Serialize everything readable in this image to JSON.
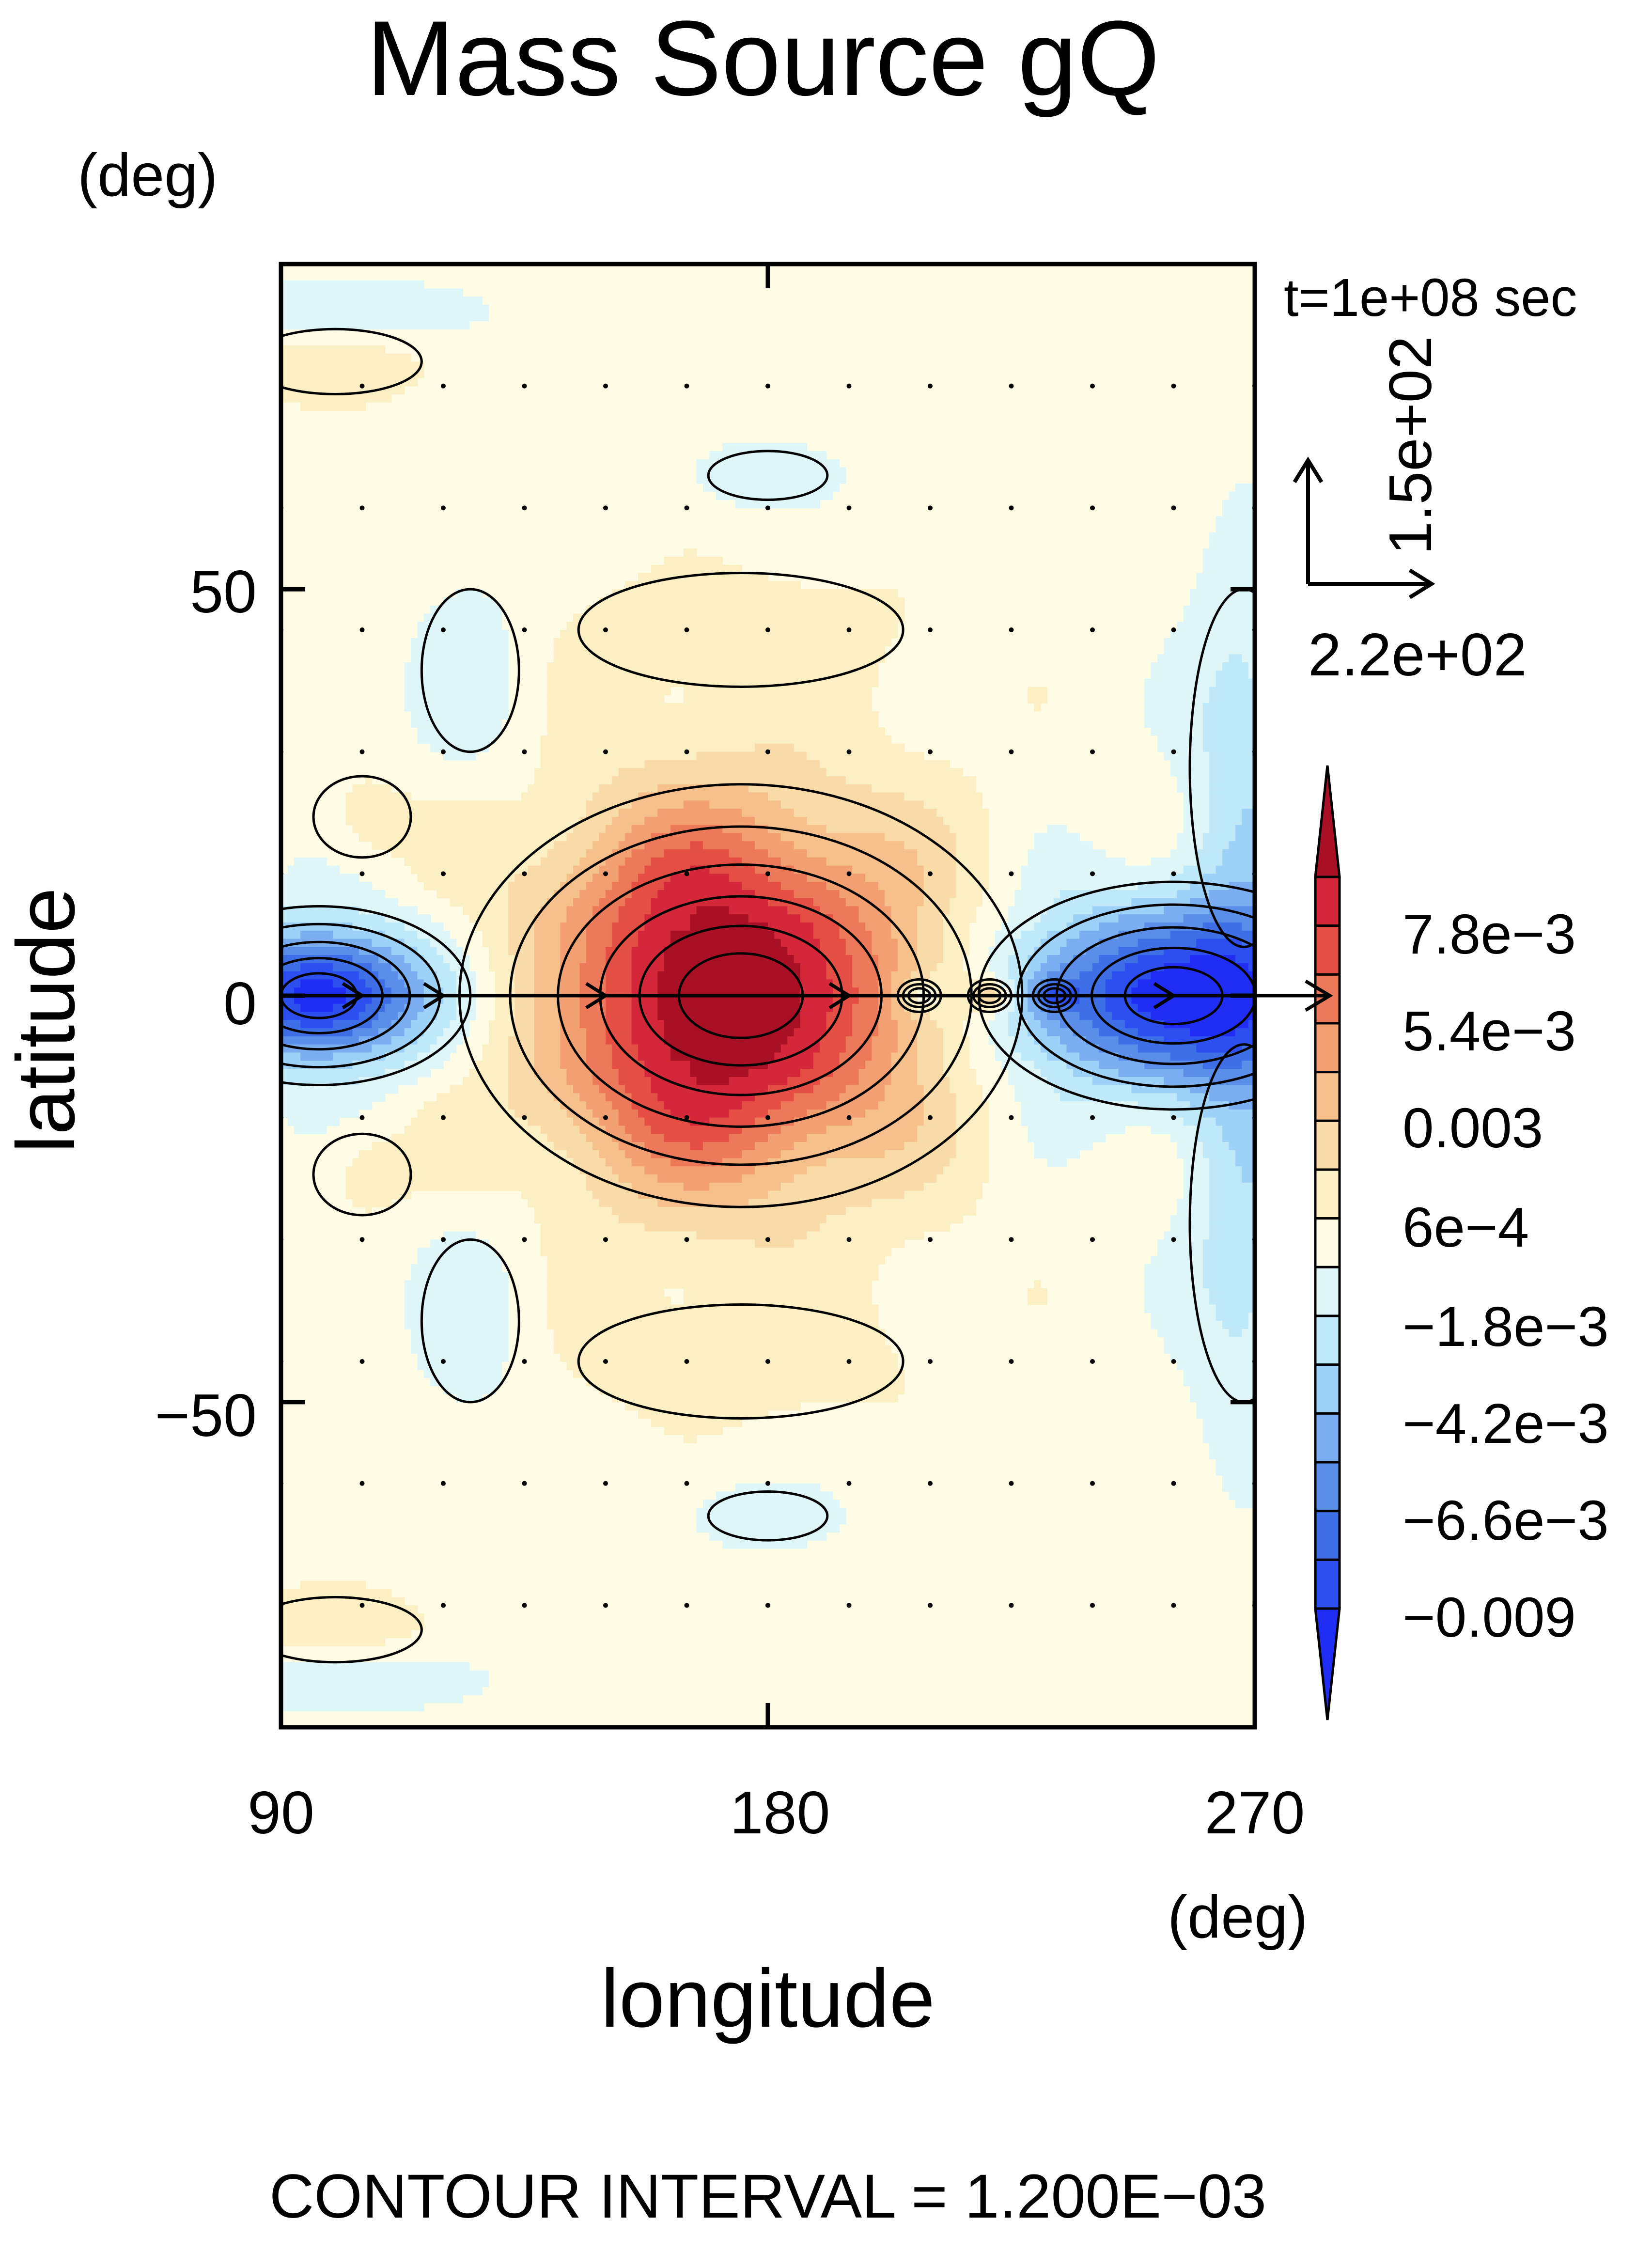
{
  "chart_data": {
    "type": "heatmap",
    "title": "Mass Source gQ",
    "xlabel": "longitude",
    "ylabel": "latitude",
    "x_unit": "(deg)",
    "y_unit": "(deg)",
    "xlim": [
      90,
      270
    ],
    "ylim": [
      -90,
      90
    ],
    "x_ticks": [
      "90",
      "180",
      "270"
    ],
    "y_ticks": [
      "50",
      "0",
      "−50"
    ],
    "time_label": "t=1e+08 sec",
    "vector_reference": {
      "x_label": "2.2e+02",
      "y_label": "1.5e+02"
    },
    "contour_interval_text": "CONTOUR INTERVAL = 1.200E−03",
    "colorbar": {
      "levels": [
        -0.0102,
        -0.009,
        -0.0078,
        -0.0066,
        -0.0054,
        -0.0042,
        -0.003,
        -0.0018,
        -0.0006,
        0.0006,
        0.0018,
        0.003,
        0.0042,
        0.0054,
        0.0066,
        0.0078,
        0.009
      ],
      "labels": [
        "7.8e−3",
        "5.4e−3",
        "0.003",
        "6e−4",
        "−1.8e−3",
        "−4.2e−3",
        "−6.6e−3",
        "−0.009"
      ],
      "colors": [
        "#1f2df5",
        "#2e4ff0",
        "#3e6fe6",
        "#5a8ee8",
        "#7aaef0",
        "#9ed1f7",
        "#bfe9f9",
        "#dff6f8",
        "#fffce6",
        "#fcefc4",
        "#f8dba8",
        "#f5c08c",
        "#f29f72",
        "#ec7a5a",
        "#e54e45",
        "#d4283a",
        "#a90f25"
      ]
    },
    "features": [
      {
        "kind": "positive_max",
        "lon": 175,
        "lat": 0,
        "value": 0.009
      },
      {
        "kind": "negative_min",
        "lon": 100,
        "lat": 0,
        "value": -0.009
      },
      {
        "kind": "negative_min",
        "lon": 255,
        "lat": 0,
        "value": -0.009
      }
    ]
  }
}
